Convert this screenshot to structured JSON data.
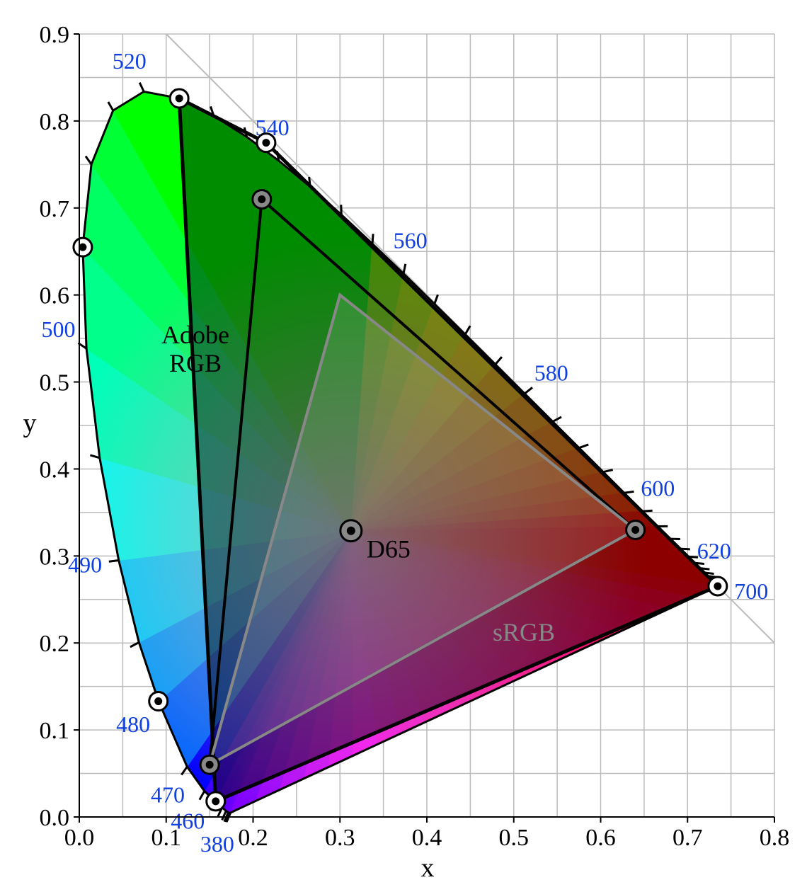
{
  "chart_data": {
    "type": "scatter",
    "xlabel": "x",
    "ylabel": "y",
    "xlim": [
      0,
      0.8
    ],
    "ylim": [
      0,
      0.9
    ],
    "x_ticks": [
      "0.0",
      "0.1",
      "0.2",
      "0.3",
      "0.4",
      "0.5",
      "0.6",
      "0.7",
      "0.8"
    ],
    "y_ticks": [
      "0.0",
      "0.1",
      "0.2",
      "0.3",
      "0.4",
      "0.5",
      "0.6",
      "0.7",
      "0.8",
      "0.9"
    ],
    "grid": true,
    "spectral_locus": [
      [
        0.1741,
        0.005
      ],
      [
        0.1738,
        0.0049
      ],
      [
        0.1733,
        0.0048
      ],
      [
        0.1726,
        0.0048
      ],
      [
        0.1714,
        0.0051
      ],
      [
        0.1689,
        0.0069
      ],
      [
        0.1644,
        0.0109
      ],
      [
        0.1566,
        0.0177
      ],
      [
        0.144,
        0.0297
      ],
      [
        0.1241,
        0.0578
      ],
      [
        0.0913,
        0.1327
      ],
      [
        0.0687,
        0.2007
      ],
      [
        0.0454,
        0.295
      ],
      [
        0.0235,
        0.4127
      ],
      [
        0.0082,
        0.5384
      ],
      [
        0.0039,
        0.6548
      ],
      [
        0.0139,
        0.7502
      ],
      [
        0.0389,
        0.812
      ],
      [
        0.0743,
        0.8338
      ],
      [
        0.1142,
        0.8262
      ],
      [
        0.1547,
        0.8059
      ],
      [
        0.1929,
        0.7816
      ],
      [
        0.2296,
        0.7543
      ],
      [
        0.2658,
        0.7243
      ],
      [
        0.3016,
        0.6923
      ],
      [
        0.3373,
        0.6589
      ],
      [
        0.3731,
        0.6245
      ],
      [
        0.4087,
        0.5896
      ],
      [
        0.4441,
        0.5547
      ],
      [
        0.4788,
        0.5202
      ],
      [
        0.5125,
        0.4866
      ],
      [
        0.5448,
        0.4544
      ],
      [
        0.5752,
        0.4242
      ],
      [
        0.6029,
        0.3965
      ],
      [
        0.627,
        0.3725
      ],
      [
        0.6482,
        0.3514
      ],
      [
        0.6658,
        0.334
      ],
      [
        0.6801,
        0.3197
      ],
      [
        0.6915,
        0.3083
      ],
      [
        0.7006,
        0.2993
      ],
      [
        0.7079,
        0.292
      ],
      [
        0.714,
        0.2859
      ],
      [
        0.719,
        0.2809
      ],
      [
        0.723,
        0.277
      ],
      [
        0.726,
        0.274
      ],
      [
        0.7283,
        0.2717
      ],
      [
        0.73,
        0.27
      ],
      [
        0.7311,
        0.2689
      ],
      [
        0.732,
        0.268
      ],
      [
        0.7327,
        0.2673
      ],
      [
        0.7334,
        0.2666
      ],
      [
        0.734,
        0.266
      ],
      [
        0.7344,
        0.2656
      ],
      [
        0.7346,
        0.2654
      ],
      [
        0.7347,
        0.2653
      ]
    ],
    "wavelength_ticks": [
      [
        0.1741,
        0.005
      ],
      [
        0.174,
        0.005
      ],
      [
        0.1738,
        0.0049
      ],
      [
        0.1736,
        0.0049
      ],
      [
        0.1733,
        0.0048
      ],
      [
        0.1726,
        0.0048
      ],
      [
        0.1714,
        0.0051
      ],
      [
        0.1689,
        0.0069
      ],
      [
        0.1644,
        0.0109
      ],
      [
        0.1566,
        0.0177
      ],
      [
        0.144,
        0.0297
      ],
      [
        0.1241,
        0.0578
      ],
      [
        0.0913,
        0.1327
      ],
      [
        0.0687,
        0.2007
      ],
      [
        0.0454,
        0.295
      ],
      [
        0.0235,
        0.4127
      ],
      [
        0.0082,
        0.5384
      ],
      [
        0.0039,
        0.6548
      ],
      [
        0.0139,
        0.7502
      ],
      [
        0.0389,
        0.812
      ],
      [
        0.0743,
        0.8338
      ],
      [
        0.1142,
        0.8262
      ],
      [
        0.1547,
        0.8059
      ],
      [
        0.1929,
        0.7816
      ],
      [
        0.2296,
        0.7543
      ],
      [
        0.2658,
        0.7243
      ],
      [
        0.3016,
        0.6923
      ],
      [
        0.3373,
        0.6589
      ],
      [
        0.3731,
        0.6245
      ],
      [
        0.4087,
        0.5896
      ],
      [
        0.4441,
        0.5547
      ],
      [
        0.4788,
        0.5202
      ],
      [
        0.5125,
        0.4866
      ],
      [
        0.5448,
        0.4544
      ],
      [
        0.5752,
        0.4242
      ],
      [
        0.6029,
        0.3965
      ],
      [
        0.627,
        0.3725
      ],
      [
        0.6482,
        0.3514
      ],
      [
        0.6658,
        0.334
      ],
      [
        0.6801,
        0.3197
      ],
      [
        0.6915,
        0.3083
      ],
      [
        0.7006,
        0.2993
      ],
      [
        0.7079,
        0.292
      ],
      [
        0.714,
        0.2859
      ],
      [
        0.719,
        0.2809
      ],
      [
        0.723,
        0.277
      ],
      [
        0.726,
        0.274
      ],
      [
        0.7347,
        0.2653
      ]
    ],
    "wavelength_labels": [
      {
        "text": "380",
        "x": 0.1741,
        "y": 0.005
      },
      {
        "text": "460",
        "x": 0.144,
        "y": 0.0297
      },
      {
        "text": "470",
        "x": 0.1241,
        "y": 0.0578
      },
      {
        "text": "480",
        "x": 0.0913,
        "y": 0.1327
      },
      {
        "text": "490",
        "x": 0.0454,
        "y": 0.295
      },
      {
        "text": "500",
        "x": 0.0082,
        "y": 0.5384
      },
      {
        "text": "520",
        "x": 0.0743,
        "y": 0.8338
      },
      {
        "text": "540",
        "x": 0.2296,
        "y": 0.7543
      },
      {
        "text": "560",
        "x": 0.3731,
        "y": 0.6245
      },
      {
        "text": "580",
        "x": 0.5125,
        "y": 0.4866
      },
      {
        "text": "600",
        "x": 0.627,
        "y": 0.3725
      },
      {
        "text": "620",
        "x": 0.6915,
        "y": 0.3083
      },
      {
        "text": "700",
        "x": 0.7347,
        "y": 0.2653
      }
    ],
    "wide_gamut": [
      [
        0.7347,
        0.2653
      ],
      [
        0.215,
        0.775
      ],
      [
        0.115,
        0.826
      ],
      [
        0.157,
        0.018
      ]
    ],
    "wide_gamut_primaries": [
      [
        0.7347,
        0.2653
      ],
      [
        0.215,
        0.775
      ],
      [
        0.115,
        0.826
      ],
      [
        0.091,
        0.133
      ],
      [
        0.157,
        0.018
      ],
      [
        0.004,
        0.655
      ]
    ],
    "series": [
      {
        "name": "Adobe RGB",
        "points": [
          [
            0.64,
            0.33
          ],
          [
            0.21,
            0.71
          ],
          [
            0.15,
            0.06
          ]
        ]
      },
      {
        "name": "sRGB",
        "points": [
          [
            0.64,
            0.33
          ],
          [
            0.3,
            0.6
          ],
          [
            0.15,
            0.06
          ]
        ]
      }
    ],
    "adobe_label": [
      "Adobe",
      "RGB"
    ],
    "srgb_label": "sRGB",
    "white_point": {
      "name": "D65",
      "x": 0.3127,
      "y": 0.329
    },
    "colors": {
      "grid": "#bbbbbb",
      "wavelength_label": "#1040e0",
      "srgb_line": "#888888",
      "diagonal": "#bbbbbb"
    }
  }
}
